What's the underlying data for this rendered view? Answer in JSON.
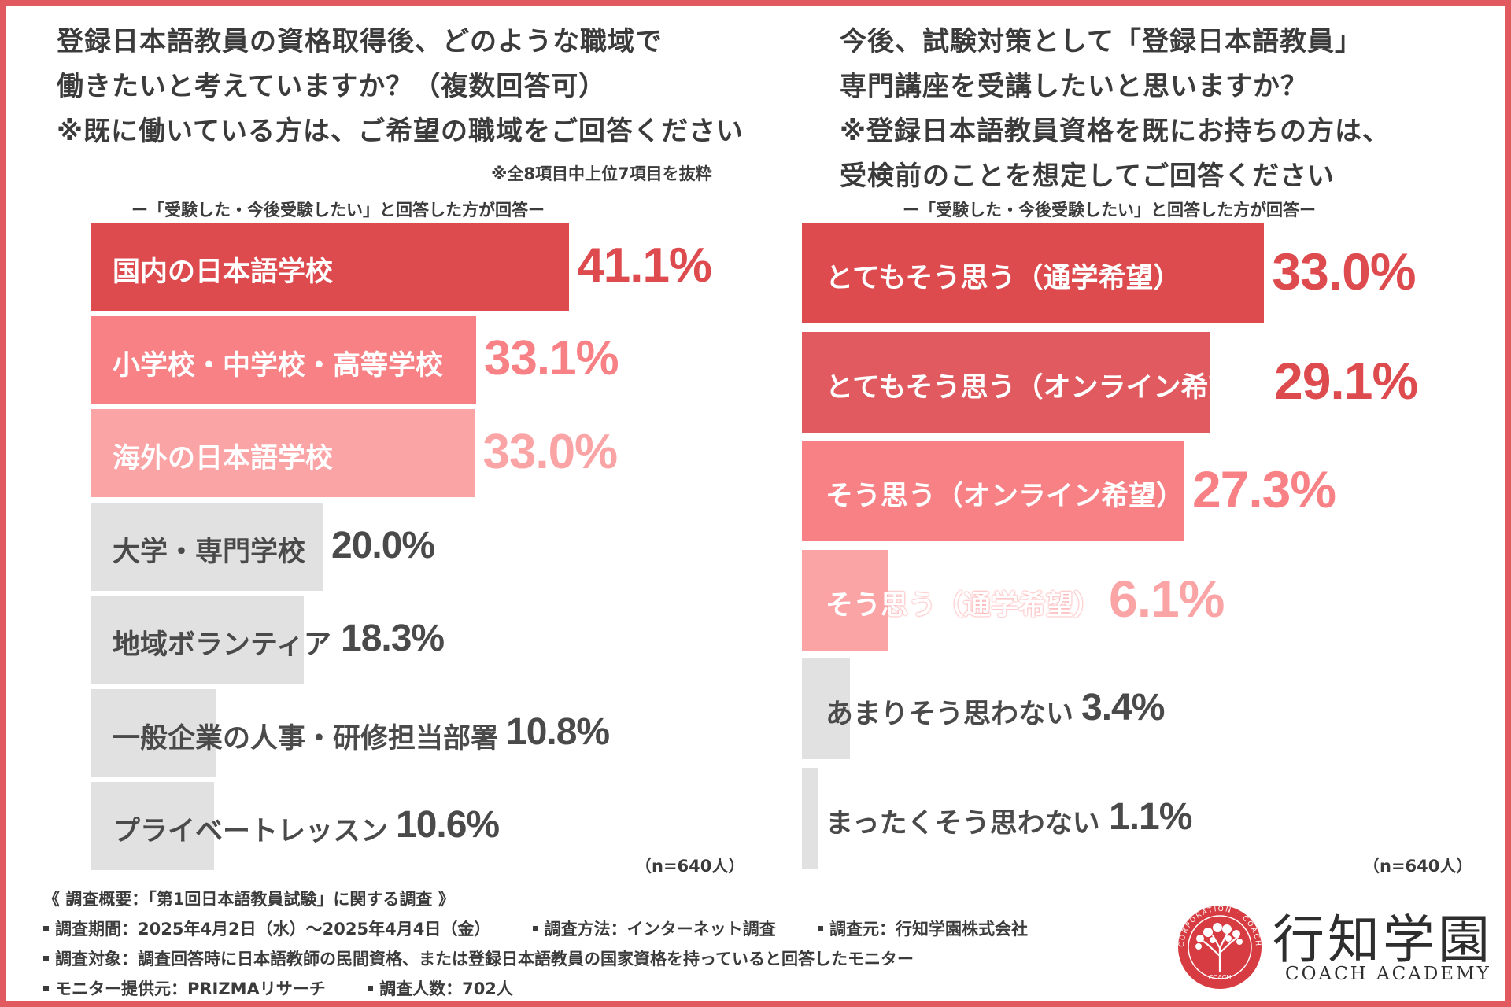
{
  "left": {
    "title": "登録日本語教員の資格取得後、どのような職域で\n働きたいと考えていますか？（複数回答可）\n※既に働いている方は、ご希望の職域をご回答ください",
    "note": "※全8項目中上位7項目を抜粋",
    "subtitle": "ー「受験した・今後受験したい」と回答した方が回答ー",
    "n": "（n=640人）"
  },
  "right": {
    "title": "今後、試験対策として「登録日本語教員」\n専門講座を受講したいと思いますか？\n※登録日本語教員資格を既にお持ちの方は、\n受検前のことを想定してご回答ください",
    "subtitle": "ー「受験した・今後受験したい」と回答した方が回答ー",
    "n": "（n=640人）"
  },
  "colors": {
    "dark_red": "#dd4b4f",
    "mid_red": "#e05a5f",
    "pink": "#f88185",
    "light_pink": "#fba4a6",
    "gray": "#e1e1e1",
    "text_gray": "#4a4a4a"
  },
  "chart_data": [
    {
      "type": "bar",
      "orientation": "horizontal",
      "title": "登録日本語教員の資格取得後、どのような職域で働きたいと考えていますか？（複数回答可）",
      "categories": [
        "国内の日本語学校",
        "小学校・中学校・高等学校",
        "海外の日本語学校",
        "大学・専門学校",
        "地域ボランティア",
        "一般企業の人事・研修担当部署",
        "プライベートレッスン"
      ],
      "values": [
        41.1,
        33.1,
        33.0,
        20.0,
        18.3,
        10.8,
        10.6
      ],
      "value_labels": [
        "41.1%",
        "33.1%",
        "33.0%",
        "20.0%",
        "18.3%",
        "10.8%",
        "10.6%"
      ],
      "unit": "%",
      "xlim": [
        0,
        100
      ]
    },
    {
      "type": "bar",
      "orientation": "horizontal",
      "title": "今後、試験対策として「登録日本語教員」専門講座を受講したいと思いますか？",
      "categories": [
        "とてもそう思う（通学希望）",
        "とてもそう思う（オンライン希望）",
        "そう思う（オンライン希望）",
        "そう思う（通学希望）",
        "あまりそう思わない",
        "まったくそう思わない"
      ],
      "values": [
        33.0,
        29.1,
        27.3,
        6.1,
        3.4,
        1.1
      ],
      "value_labels": [
        "33.0%",
        "29.1%",
        "27.3%",
        "6.1%",
        "3.4%",
        "1.1%"
      ],
      "unit": "%",
      "xlim": [
        0,
        100
      ]
    }
  ],
  "footer": {
    "heading": "《 調査概要：「第1回日本語教員試験」に関する調査 》",
    "period": "調査期間：2025年4月2日（水）～2025年4月4日（金）",
    "method": "調査方法：インターネット調査",
    "source": "調査元：行知学園株式会社",
    "target": "調査対象：調査回答時に日本語教師の民間資格、または登録日本語教員の国家資格を持っていると回答したモニター",
    "provider": "モニター提供元：PRIZMAリサーチ",
    "count": "調査人数：702人"
  },
  "logo": {
    "name": "行知学園",
    "sub": "COACH ACADEMY",
    "seal_ring": "CORPORATION · COACH",
    "seal_center": "COACH"
  }
}
